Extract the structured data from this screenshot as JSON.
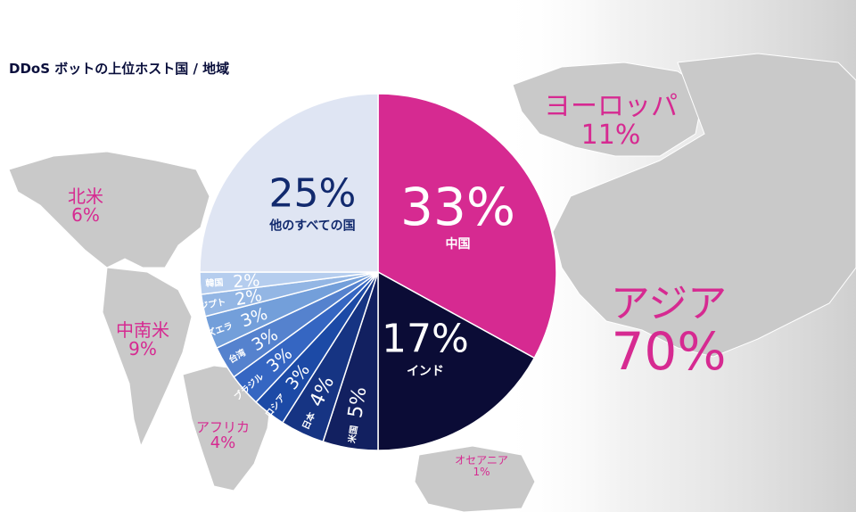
{
  "colors": {
    "magenta": "#d62a91",
    "navy": "#0a0d38",
    "light": "#dde3f2",
    "map": "#c8c8c8"
  },
  "chart_data": {
    "type": "pie",
    "title": "DDoS ボットの上位ホスト国 / 地域",
    "slices": [
      {
        "label": "中国",
        "value": 33,
        "display": "33%",
        "color": "#d62a91"
      },
      {
        "label": "インド",
        "value": 17,
        "display": "17%",
        "color": "#0b0c36"
      },
      {
        "label": "米国",
        "value": 5,
        "display": "5%",
        "color": "#122060"
      },
      {
        "label": "日本",
        "value": 4,
        "display": "4%",
        "color": "#163483"
      },
      {
        "label": "ロシア",
        "value": 3,
        "display": "3%",
        "color": "#1c4aa6"
      },
      {
        "label": "ブラジル",
        "value": 3,
        "display": "3%",
        "color": "#3566c2"
      },
      {
        "label": "台湾",
        "value": 3,
        "display": "3%",
        "color": "#5582ce"
      },
      {
        "label": "ベネズエラ",
        "value": 3,
        "display": "3%",
        "color": "#739fda"
      },
      {
        "label": "エジプト",
        "value": 2,
        "display": "2%",
        "color": "#93b6e4"
      },
      {
        "label": "韓国",
        "value": 2,
        "display": "2%",
        "color": "#b5cdee"
      },
      {
        "label": "他のすべての国",
        "value": 25,
        "display": "25%",
        "color": "#dfe5f3"
      }
    ],
    "regions": [
      {
        "name": "北米",
        "value": "6%"
      },
      {
        "name": "中南米",
        "value": "9%"
      },
      {
        "name": "アフリカ",
        "value": "4%"
      },
      {
        "name": "ヨーロッパ",
        "value": "11%"
      },
      {
        "name": "アジア",
        "value": "70%"
      },
      {
        "name": "オセアニア",
        "value": "1%"
      }
    ]
  }
}
